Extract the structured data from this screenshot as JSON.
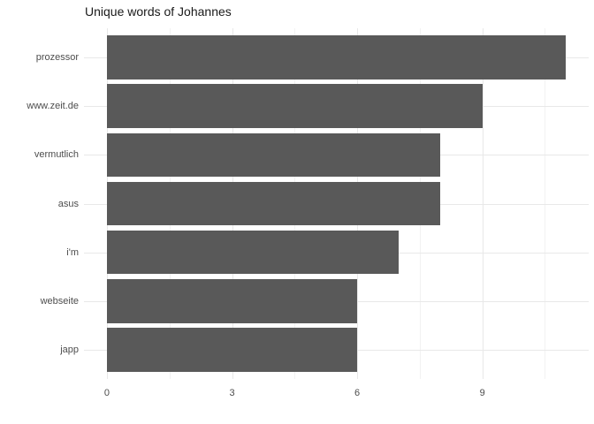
{
  "chart_data": {
    "type": "bar",
    "orientation": "horizontal",
    "title": "Unique words of Johannes",
    "categories": [
      "prozessor",
      "www.zeit.de",
      "vermutlich",
      "asus",
      "i'm",
      "webseite",
      "japp"
    ],
    "values": [
      11,
      9,
      8,
      8,
      7,
      6,
      6
    ],
    "xlabel": "",
    "ylabel": "",
    "xlim": [
      0,
      11
    ],
    "x_major_ticks": [
      0,
      3,
      6,
      9
    ],
    "x_minor_ticks": [
      1.5,
      4.5,
      7.5,
      10.5
    ],
    "grid": "on",
    "legend": "none",
    "colors": {
      "bar": "#595959",
      "grid_major": "#e8e8e8",
      "grid_minor": "#f2f2f2",
      "axis_text": "#4d4d4d",
      "title_text": "#1a1a1a",
      "background": "#ffffff"
    }
  }
}
